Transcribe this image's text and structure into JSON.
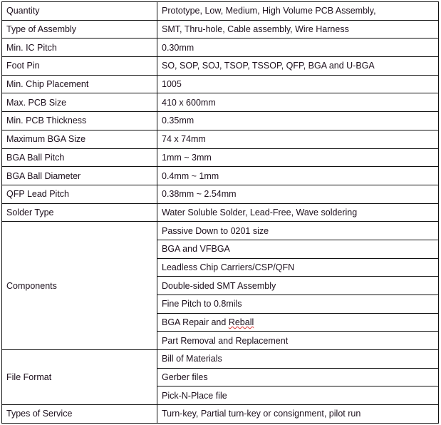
{
  "rows": [
    {
      "label": "Quantity",
      "values": [
        "Prototype, Low, Medium, High Volume PCB Assembly,"
      ]
    },
    {
      "label": "Type of Assembly",
      "values": [
        "SMT, Thru-hole,  Cable assembly, Wire Harness"
      ]
    },
    {
      "label": "Min. IC Pitch",
      "values": [
        "0.30mm"
      ]
    },
    {
      "label": "Foot Pin",
      "values": [
        "SO, SOP, SOJ, TSOP, TSSOP, QFP, BGA and U-BGA"
      ]
    },
    {
      "label": "Min. Chip Placement",
      "values": [
        "1005"
      ]
    },
    {
      "label": "Max. PCB Size",
      "values": [
        "410 x 600mm"
      ]
    },
    {
      "label": "Min. PCB Thickness",
      "values": [
        "0.35mm"
      ]
    },
    {
      "label": "Maximum BGA Size",
      "values": [
        "74 x 74mm"
      ]
    },
    {
      "label": "BGA Ball Pitch",
      "values": [
        "1mm ~ 3mm"
      ]
    },
    {
      "label": "BGA Ball Diameter",
      "values": [
        "0.4mm ~ 1mm"
      ]
    },
    {
      "label": "QFP Lead Pitch",
      "values": [
        "0.38mm ~ 2.54mm"
      ]
    },
    {
      "label": "Solder Type",
      "values": [
        "Water Soluble Solder, Lead-Free,  Wave soldering"
      ]
    },
    {
      "label": "Components",
      "values": [
        "Passive Down to 0201 size",
        "BGA and VFBGA",
        "Leadless Chip Carriers/CSP/QFN",
        "Double-sided SMT Assembly",
        "Fine Pitch to 0.8mils",
        "BGA Repair and Reball",
        "Part Removal and Replacement"
      ]
    },
    {
      "label": "File Format",
      "values": [
        "Bill of Materials",
        "Gerber  files",
        "Pick-N-Place  file"
      ]
    },
    {
      "label": "Types of Service",
      "values": [
        "Turn-key,  Partial turn-key  or consignment, pilot run"
      ]
    }
  ]
}
